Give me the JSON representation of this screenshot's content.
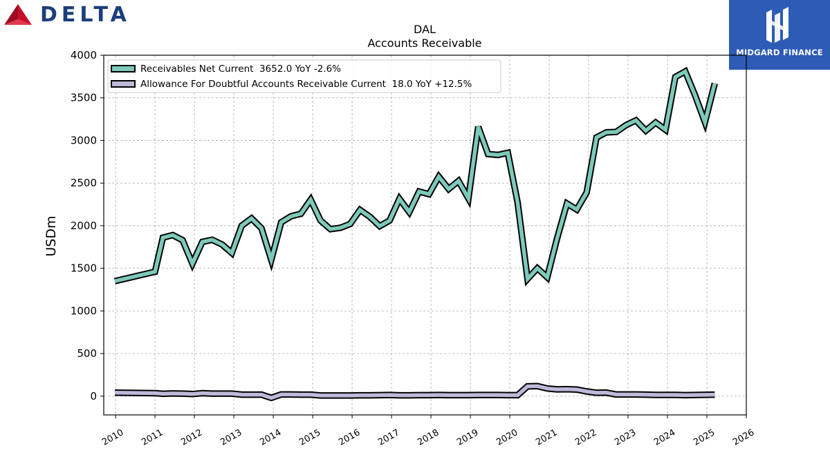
{
  "branding": {
    "left_logo_text": "DELTA",
    "right_logo_text": "MIDGARD FINANCE",
    "colors": {
      "delta_red": "#C8102E",
      "delta_navy": "#1B3F7A",
      "midgard_blue": "#2D5BB5"
    },
    "icons": [
      "delta-widget-icon",
      "midgard-m-icon"
    ]
  },
  "chart_data": {
    "type": "line",
    "title": "DAL",
    "subtitle": "Accounts Receivable",
    "ylabel": "USDm",
    "xlabel": "",
    "xlim": [
      2009.7,
      2026.0
    ],
    "ylim": [
      -220,
      4000
    ],
    "yticks": [
      0,
      500,
      1000,
      1500,
      2000,
      2500,
      3000,
      3500,
      4000
    ],
    "xticks": [
      "2010",
      "2011",
      "2012",
      "2013",
      "2014",
      "2015",
      "2016",
      "2017",
      "2018",
      "2019",
      "2020",
      "2021",
      "2022",
      "2023",
      "2024",
      "2025",
      "2026"
    ],
    "grid": true,
    "legend_position": "top-left",
    "series": [
      {
        "name": "Receivables Net Current  3652.0 YoY -2.6%",
        "color": "#7DC9BA",
        "points": [
          [
            2009.98,
            1350
          ],
          [
            2011.0,
            1460
          ],
          [
            2011.2,
            1860
          ],
          [
            2011.45,
            1890
          ],
          [
            2011.7,
            1830
          ],
          [
            2011.95,
            1555
          ],
          [
            2012.2,
            1810
          ],
          [
            2012.45,
            1835
          ],
          [
            2012.7,
            1780
          ],
          [
            2012.95,
            1680
          ],
          [
            2013.2,
            2000
          ],
          [
            2013.45,
            2085
          ],
          [
            2013.7,
            1970
          ],
          [
            2013.95,
            1600
          ],
          [
            2014.2,
            2040
          ],
          [
            2014.45,
            2110
          ],
          [
            2014.7,
            2140
          ],
          [
            2014.95,
            2305
          ],
          [
            2015.2,
            2060
          ],
          [
            2015.45,
            1960
          ],
          [
            2015.7,
            1975
          ],
          [
            2015.95,
            2020
          ],
          [
            2016.2,
            2185
          ],
          [
            2016.45,
            2105
          ],
          [
            2016.7,
            1995
          ],
          [
            2016.95,
            2060
          ],
          [
            2017.2,
            2315
          ],
          [
            2017.45,
            2160
          ],
          [
            2017.7,
            2400
          ],
          [
            2017.95,
            2370
          ],
          [
            2018.2,
            2575
          ],
          [
            2018.45,
            2430
          ],
          [
            2018.7,
            2525
          ],
          [
            2018.95,
            2320
          ],
          [
            2019.2,
            3160
          ],
          [
            2019.45,
            2840
          ],
          [
            2019.7,
            2830
          ],
          [
            2019.95,
            2855
          ],
          [
            2020.2,
            2270
          ],
          [
            2020.45,
            1375
          ],
          [
            2020.7,
            1500
          ],
          [
            2020.95,
            1395
          ],
          [
            2021.2,
            1850
          ],
          [
            2021.45,
            2260
          ],
          [
            2021.7,
            2190
          ],
          [
            2021.95,
            2390
          ],
          [
            2022.2,
            3035
          ],
          [
            2022.45,
            3095
          ],
          [
            2022.7,
            3100
          ],
          [
            2022.95,
            3180
          ],
          [
            2023.2,
            3235
          ],
          [
            2023.45,
            3115
          ],
          [
            2023.7,
            3210
          ],
          [
            2023.95,
            3125
          ],
          [
            2024.2,
            3745
          ],
          [
            2024.45,
            3810
          ],
          [
            2024.7,
            3530
          ],
          [
            2024.95,
            3215
          ],
          [
            2025.2,
            3670
          ]
        ]
      },
      {
        "name": "Allowance For Doubtful Accounts Receivable Current  18.0 YoY +12.5%",
        "color": "#BDB9D9",
        "points": [
          [
            2009.98,
            42
          ],
          [
            2011.0,
            35
          ],
          [
            2011.2,
            28
          ],
          [
            2011.45,
            32
          ],
          [
            2011.7,
            30
          ],
          [
            2011.95,
            25
          ],
          [
            2012.2,
            35
          ],
          [
            2012.45,
            30
          ],
          [
            2012.7,
            30
          ],
          [
            2012.95,
            30
          ],
          [
            2013.2,
            18
          ],
          [
            2013.45,
            18
          ],
          [
            2013.7,
            18
          ],
          [
            2013.95,
            -20
          ],
          [
            2014.2,
            20
          ],
          [
            2014.45,
            20
          ],
          [
            2014.7,
            18
          ],
          [
            2014.95,
            18
          ],
          [
            2015.2,
            8
          ],
          [
            2015.45,
            8
          ],
          [
            2015.7,
            8
          ],
          [
            2015.95,
            8
          ],
          [
            2016.2,
            10
          ],
          [
            2016.45,
            10
          ],
          [
            2016.7,
            12
          ],
          [
            2016.95,
            14
          ],
          [
            2017.2,
            10
          ],
          [
            2017.45,
            10
          ],
          [
            2017.7,
            12
          ],
          [
            2017.95,
            12
          ],
          [
            2018.2,
            14
          ],
          [
            2018.45,
            12
          ],
          [
            2018.7,
            12
          ],
          [
            2018.95,
            12
          ],
          [
            2019.2,
            14
          ],
          [
            2019.45,
            14
          ],
          [
            2019.7,
            14
          ],
          [
            2019.95,
            12
          ],
          [
            2020.2,
            12
          ],
          [
            2020.45,
            115
          ],
          [
            2020.7,
            118
          ],
          [
            2020.95,
            90
          ],
          [
            2021.2,
            80
          ],
          [
            2021.45,
            82
          ],
          [
            2021.7,
            78
          ],
          [
            2021.95,
            55
          ],
          [
            2022.2,
            40
          ],
          [
            2022.45,
            42
          ],
          [
            2022.7,
            20
          ],
          [
            2022.95,
            20
          ],
          [
            2023.2,
            20
          ],
          [
            2023.45,
            18
          ],
          [
            2023.7,
            15
          ],
          [
            2023.95,
            15
          ],
          [
            2024.2,
            15
          ],
          [
            2024.45,
            12
          ],
          [
            2024.7,
            14
          ],
          [
            2024.95,
            16
          ],
          [
            2025.2,
            18
          ]
        ]
      }
    ]
  }
}
